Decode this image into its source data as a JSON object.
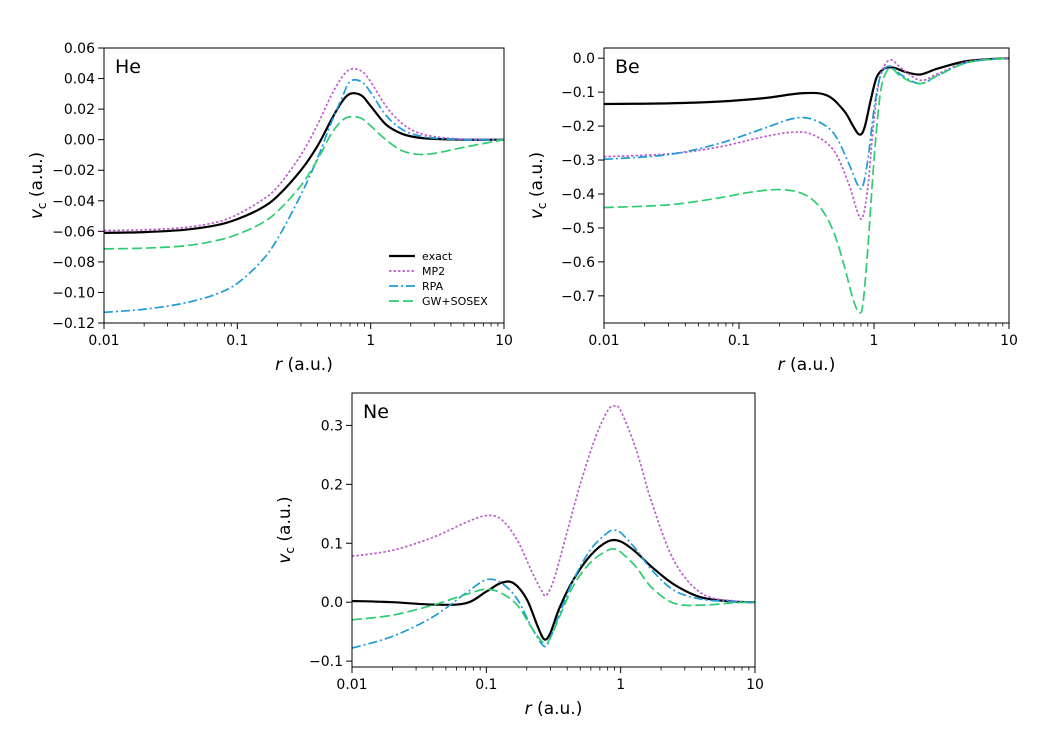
{
  "figure": {
    "legend_entries": [
      "exact",
      "MP2",
      "RPA",
      "GW+SOSEX"
    ]
  },
  "series_styles": {
    "exact": {
      "color": "#000000",
      "dash": "none"
    },
    "MP2": {
      "color": "#bf5fcf",
      "dash": "2.5,2"
    },
    "RPA": {
      "color": "#1f9bd9",
      "dash": "9,3,2,3"
    },
    "GW+SOSEX": {
      "color": "#2ecc71",
      "dash": "10,4"
    }
  },
  "chart_data": [
    {
      "type": "line",
      "panel_label": "He",
      "xlabel": "r (a.u.)",
      "ylabel": "v_c (a.u.)",
      "xscale": "log",
      "xlim": [
        0.01,
        10
      ],
      "ylim": [
        -0.12,
        0.06
      ],
      "xticks": [
        0.01,
        0.1,
        1,
        10
      ],
      "xtick_labels": [
        "0.01",
        "0.1",
        "1",
        "10"
      ],
      "yticks": [
        -0.12,
        -0.1,
        -0.08,
        -0.06,
        -0.04,
        -0.02,
        0.0,
        0.02,
        0.04,
        0.06
      ],
      "ytick_labels": [
        "−0.12",
        "−0.10",
        "−0.08",
        "−0.06",
        "−0.04",
        "−0.02",
        "0.00",
        "0.02",
        "0.04",
        "0.06"
      ],
      "legend": "center-right",
      "grid": false,
      "series": [
        {
          "name": "exact",
          "x": [
            0.01,
            0.02,
            0.04,
            0.07,
            0.1,
            0.15,
            0.2,
            0.3,
            0.4,
            0.5,
            0.6,
            0.7,
            0.85,
            1,
            1.3,
            1.7,
            2.2,
            3,
            5,
            10
          ],
          "y": [
            -0.061,
            -0.0605,
            -0.059,
            -0.056,
            -0.052,
            -0.045,
            -0.037,
            -0.02,
            -0.004,
            0.012,
            0.024,
            0.03,
            0.029,
            0.022,
            0.01,
            0.004,
            0.0015,
            0.0005,
            0.0,
            0.0
          ]
        },
        {
          "name": "MP2",
          "x": [
            0.01,
            0.02,
            0.04,
            0.07,
            0.1,
            0.15,
            0.2,
            0.3,
            0.4,
            0.5,
            0.6,
            0.7,
            0.85,
            1,
            1.3,
            1.7,
            2.2,
            3,
            5,
            10
          ],
          "y": [
            -0.0595,
            -0.059,
            -0.0575,
            -0.054,
            -0.049,
            -0.04,
            -0.031,
            -0.01,
            0.01,
            0.028,
            0.04,
            0.046,
            0.045,
            0.038,
            0.022,
            0.011,
            0.005,
            0.002,
            0.0003,
            0.0
          ]
        },
        {
          "name": "RPA",
          "x": [
            0.01,
            0.02,
            0.04,
            0.07,
            0.1,
            0.15,
            0.2,
            0.3,
            0.4,
            0.5,
            0.6,
            0.7,
            0.85,
            1,
            1.3,
            1.7,
            2.2,
            3,
            5,
            10
          ],
          "y": [
            -0.113,
            -0.111,
            -0.107,
            -0.101,
            -0.094,
            -0.08,
            -0.065,
            -0.036,
            -0.012,
            0.01,
            0.026,
            0.038,
            0.038,
            0.031,
            0.016,
            0.007,
            0.003,
            0.001,
            0.0,
            0.0
          ]
        },
        {
          "name": "GW+SOSEX",
          "x": [
            0.01,
            0.02,
            0.04,
            0.07,
            0.1,
            0.15,
            0.2,
            0.3,
            0.4,
            0.5,
            0.6,
            0.7,
            0.85,
            1,
            1.3,
            1.7,
            2.2,
            3,
            5,
            10
          ],
          "y": [
            -0.0715,
            -0.071,
            -0.0695,
            -0.066,
            -0.062,
            -0.055,
            -0.047,
            -0.03,
            -0.013,
            0.003,
            0.012,
            0.015,
            0.014,
            0.009,
            0.0,
            -0.007,
            -0.0095,
            -0.009,
            -0.005,
            0.0
          ]
        }
      ]
    },
    {
      "type": "line",
      "panel_label": "Be",
      "xlabel": "r (a.u.)",
      "ylabel": "v_c (a.u.)",
      "xscale": "log",
      "xlim": [
        0.01,
        10
      ],
      "ylim": [
        -0.78,
        0.03
      ],
      "xticks": [
        0.01,
        0.1,
        1,
        10
      ],
      "xtick_labels": [
        "0.01",
        "0.1",
        "1",
        "10"
      ],
      "yticks": [
        0.0,
        -0.1,
        -0.2,
        -0.3,
        -0.4,
        -0.5,
        -0.6,
        -0.7
      ],
      "ytick_labels": [
        "0.0",
        "−0.1",
        "−0.2",
        "−0.3",
        "−0.4",
        "−0.5",
        "−0.6",
        "−0.7"
      ],
      "grid": false,
      "series": [
        {
          "name": "exact",
          "x": [
            0.01,
            0.03,
            0.07,
            0.15,
            0.3,
            0.45,
            0.6,
            0.7,
            0.78,
            0.85,
            0.95,
            1.05,
            1.2,
            1.4,
            1.7,
            2.2,
            3,
            5,
            10
          ],
          "y": [
            -0.135,
            -0.133,
            -0.128,
            -0.118,
            -0.103,
            -0.11,
            -0.155,
            -0.2,
            -0.225,
            -0.205,
            -0.12,
            -0.055,
            -0.03,
            -0.028,
            -0.04,
            -0.048,
            -0.03,
            -0.008,
            0.0
          ]
        },
        {
          "name": "MP2",
          "x": [
            0.01,
            0.03,
            0.07,
            0.15,
            0.25,
            0.35,
            0.5,
            0.65,
            0.75,
            0.82,
            0.9,
            1.0,
            1.1,
            1.2,
            1.35,
            1.6,
            2.2,
            3,
            5,
            10
          ],
          "y": [
            -0.29,
            -0.282,
            -0.262,
            -0.232,
            -0.218,
            -0.225,
            -0.27,
            -0.37,
            -0.45,
            -0.47,
            -0.38,
            -0.18,
            -0.06,
            -0.02,
            -0.005,
            -0.03,
            -0.065,
            -0.045,
            -0.01,
            0.0
          ]
        },
        {
          "name": "RPA",
          "x": [
            0.01,
            0.03,
            0.07,
            0.15,
            0.25,
            0.35,
            0.5,
            0.65,
            0.75,
            0.82,
            0.9,
            1.0,
            1.1,
            1.2,
            1.35,
            1.6,
            2.2,
            3,
            5,
            10
          ],
          "y": [
            -0.298,
            -0.284,
            -0.252,
            -0.208,
            -0.178,
            -0.18,
            -0.22,
            -0.31,
            -0.37,
            -0.38,
            -0.3,
            -0.15,
            -0.06,
            -0.03,
            -0.025,
            -0.05,
            -0.075,
            -0.05,
            -0.012,
            0.0
          ]
        },
        {
          "name": "GW+SOSEX",
          "x": [
            0.01,
            0.03,
            0.07,
            0.12,
            0.2,
            0.3,
            0.4,
            0.5,
            0.6,
            0.7,
            0.78,
            0.83,
            0.9,
            1.0,
            1.1,
            1.2,
            1.35,
            1.6,
            2.2,
            3,
            5,
            10
          ],
          "y": [
            -0.44,
            -0.432,
            -0.412,
            -0.395,
            -0.387,
            -0.4,
            -0.44,
            -0.51,
            -0.61,
            -0.71,
            -0.75,
            -0.72,
            -0.56,
            -0.3,
            -0.12,
            -0.05,
            -0.03,
            -0.055,
            -0.075,
            -0.05,
            -0.012,
            0.0
          ]
        }
      ]
    },
    {
      "type": "line",
      "panel_label": "Ne",
      "xlabel": "r (a.u.)",
      "ylabel": "v_c (a.u.)",
      "xscale": "log",
      "xlim": [
        0.01,
        10
      ],
      "ylim": [
        -0.11,
        0.355
      ],
      "xticks": [
        0.01,
        0.1,
        1,
        10
      ],
      "xtick_labels": [
        "0.01",
        "0.1",
        "1",
        "10"
      ],
      "yticks": [
        -0.1,
        0.0,
        0.1,
        0.2,
        0.3
      ],
      "ytick_labels": [
        "−0.1",
        "0.0",
        "0.1",
        "0.2",
        "0.3"
      ],
      "grid": false,
      "series": [
        {
          "name": "exact",
          "x": [
            0.01,
            0.02,
            0.04,
            0.07,
            0.1,
            0.13,
            0.16,
            0.2,
            0.24,
            0.27,
            0.3,
            0.35,
            0.45,
            0.6,
            0.8,
            1.0,
            1.3,
            1.7,
            2.5,
            4,
            7,
            10
          ],
          "y": [
            0.002,
            0.0,
            -0.004,
            -0.002,
            0.018,
            0.033,
            0.032,
            0.005,
            -0.04,
            -0.063,
            -0.052,
            -0.01,
            0.04,
            0.08,
            0.103,
            0.103,
            0.085,
            0.06,
            0.03,
            0.008,
            0.001,
            0.0
          ]
        },
        {
          "name": "MP2",
          "x": [
            0.01,
            0.02,
            0.04,
            0.07,
            0.1,
            0.13,
            0.17,
            0.22,
            0.26,
            0.28,
            0.32,
            0.4,
            0.5,
            0.65,
            0.8,
            0.9,
            1.0,
            1.3,
            1.7,
            2.5,
            4,
            7,
            10
          ],
          "y": [
            0.078,
            0.088,
            0.11,
            0.135,
            0.147,
            0.14,
            0.105,
            0.05,
            0.018,
            0.012,
            0.04,
            0.12,
            0.2,
            0.28,
            0.325,
            0.333,
            0.325,
            0.26,
            0.17,
            0.07,
            0.015,
            0.002,
            0.0
          ]
        },
        {
          "name": "RPA",
          "x": [
            0.01,
            0.02,
            0.04,
            0.07,
            0.1,
            0.13,
            0.17,
            0.22,
            0.27,
            0.3,
            0.35,
            0.45,
            0.6,
            0.8,
            0.9,
            1.0,
            1.3,
            1.7,
            2.5,
            4,
            7,
            10
          ],
          "y": [
            -0.078,
            -0.058,
            -0.025,
            0.015,
            0.038,
            0.032,
            0.005,
            -0.045,
            -0.075,
            -0.06,
            -0.02,
            0.04,
            0.09,
            0.118,
            0.122,
            0.118,
            0.09,
            0.055,
            0.02,
            0.005,
            0.001,
            0.0
          ]
        },
        {
          "name": "GW+SOSEX",
          "x": [
            0.01,
            0.02,
            0.04,
            0.07,
            0.1,
            0.13,
            0.17,
            0.22,
            0.27,
            0.3,
            0.35,
            0.45,
            0.6,
            0.8,
            0.9,
            1.0,
            1.3,
            1.7,
            2.5,
            4,
            7,
            10
          ],
          "y": [
            -0.03,
            -0.022,
            -0.005,
            0.013,
            0.022,
            0.015,
            -0.005,
            -0.045,
            -0.07,
            -0.06,
            -0.025,
            0.03,
            0.068,
            0.088,
            0.09,
            0.085,
            0.06,
            0.025,
            -0.002,
            -0.005,
            -0.001,
            0.0
          ]
        }
      ]
    }
  ]
}
